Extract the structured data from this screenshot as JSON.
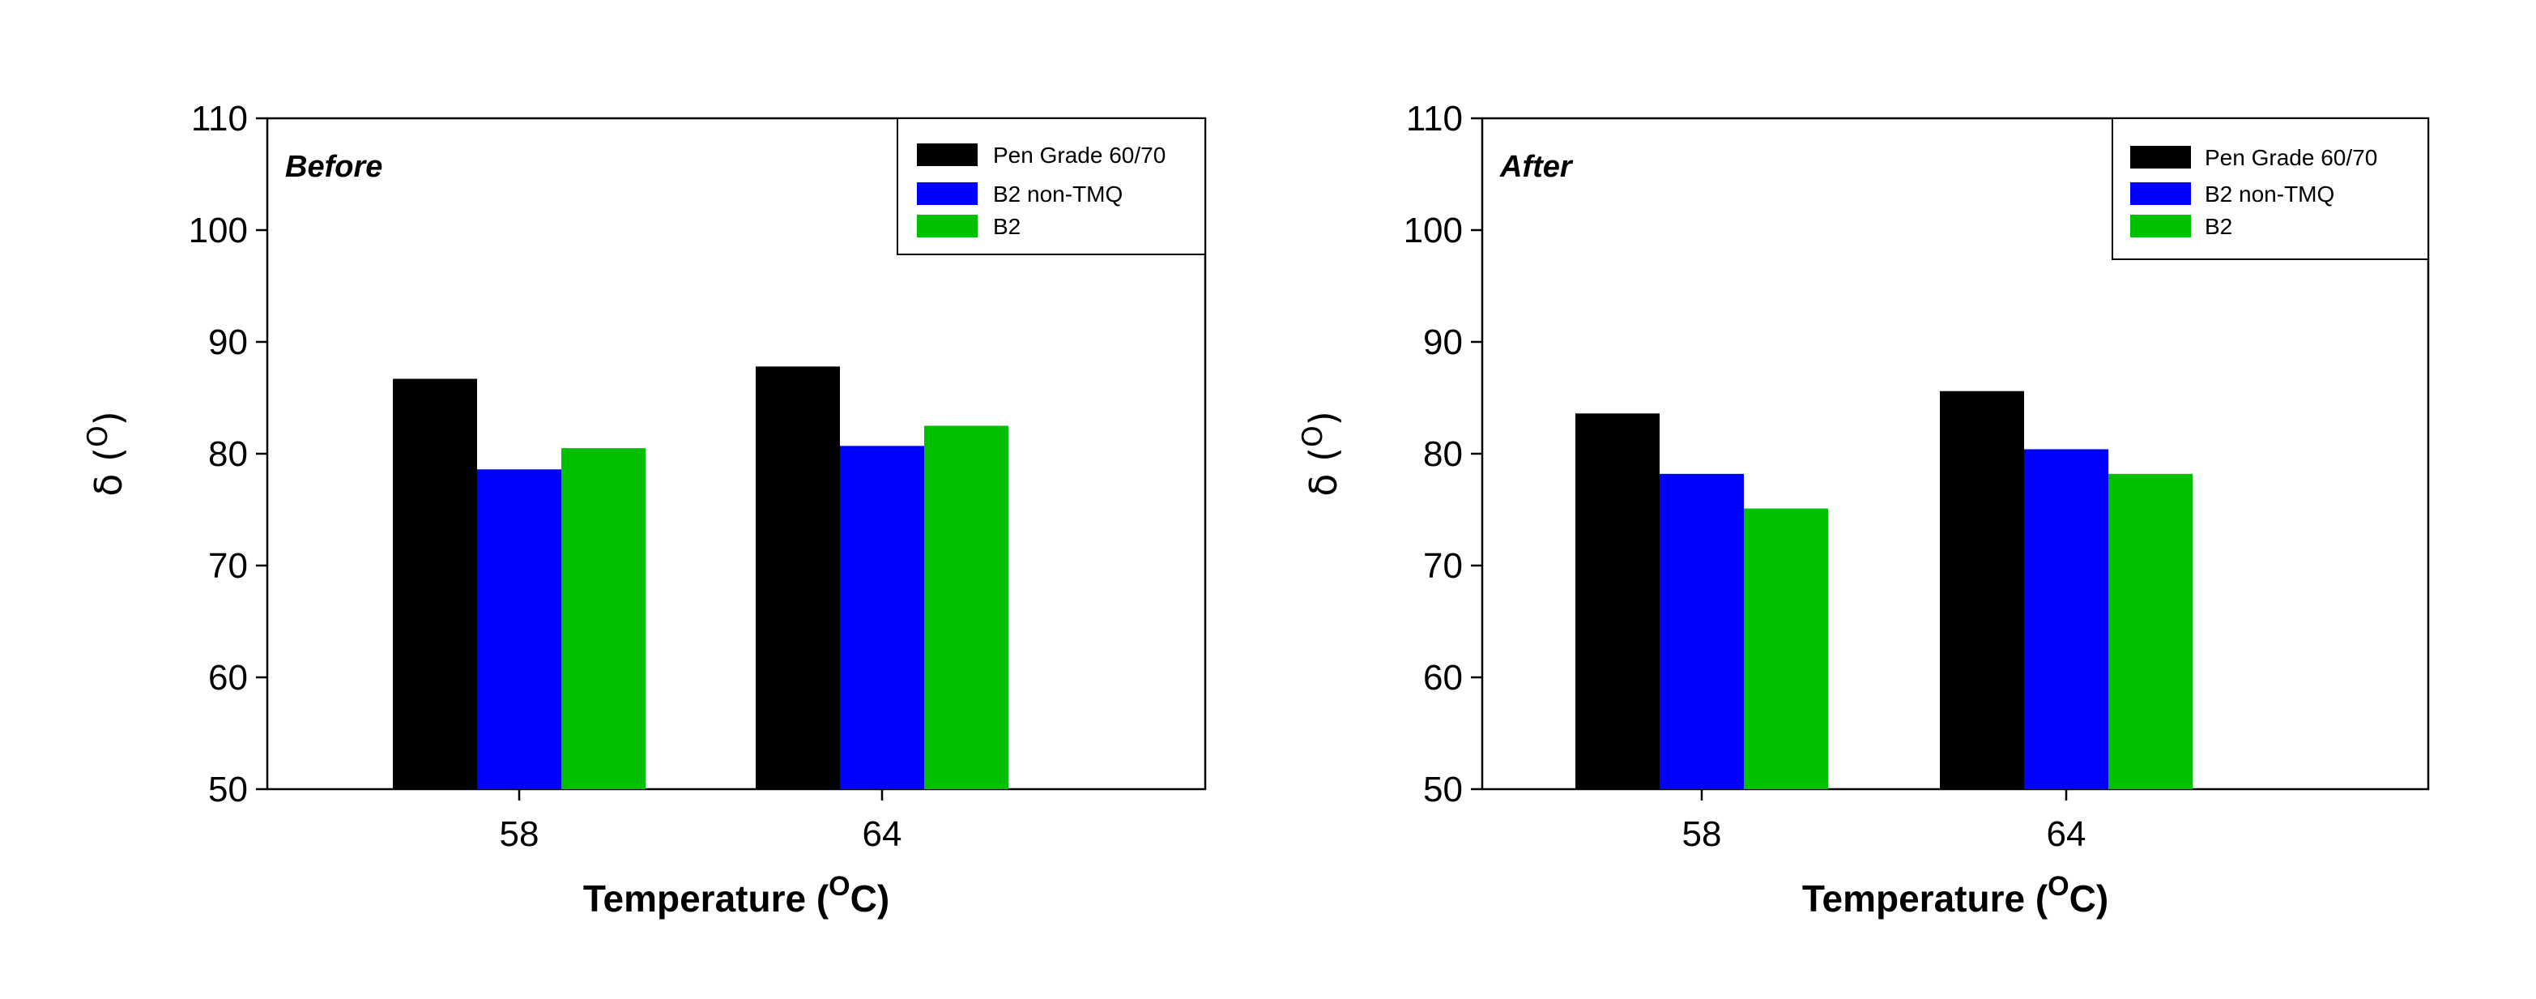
{
  "chart_data": [
    {
      "type": "bar",
      "title": "",
      "panel_label": "Before",
      "xlabel": "Temperature",
      "xlabel_unit_sup": "O",
      "xlabel_unit": "C",
      "ylabel": "δ",
      "ylabel_sup": "O",
      "categories": [
        "58",
        "64"
      ],
      "ylim": [
        50,
        110
      ],
      "yticks": [
        50,
        60,
        70,
        80,
        90,
        100,
        110
      ],
      "legend_position": "top-right",
      "grid": false,
      "series": [
        {
          "name": "Pen Grade 60/70",
          "color": "#000000",
          "values": [
            86.7,
            87.8
          ]
        },
        {
          "name": "B2 non-TMQ",
          "color": "#0000ff",
          "values": [
            78.6,
            80.7
          ]
        },
        {
          "name": "B2",
          "color": "#00c000",
          "values": [
            80.5,
            82.5
          ]
        }
      ]
    },
    {
      "type": "bar",
      "title": "",
      "panel_label": "After",
      "xlabel": "Temperature",
      "xlabel_unit_sup": "O",
      "xlabel_unit": "C",
      "ylabel": "δ",
      "ylabel_sup": "O",
      "categories": [
        "58",
        "64"
      ],
      "ylim": [
        50,
        110
      ],
      "yticks": [
        50,
        60,
        70,
        80,
        90,
        100,
        110
      ],
      "legend_position": "top-right",
      "grid": false,
      "series": [
        {
          "name": "Pen Grade 60/70",
          "color": "#000000",
          "values": [
            83.6,
            85.6
          ]
        },
        {
          "name": "B2 non-TMQ",
          "color": "#0000ff",
          "values": [
            78.2,
            80.4
          ]
        },
        {
          "name": "B2",
          "color": "#00c000",
          "values": [
            75.1,
            78.2
          ]
        }
      ]
    }
  ]
}
